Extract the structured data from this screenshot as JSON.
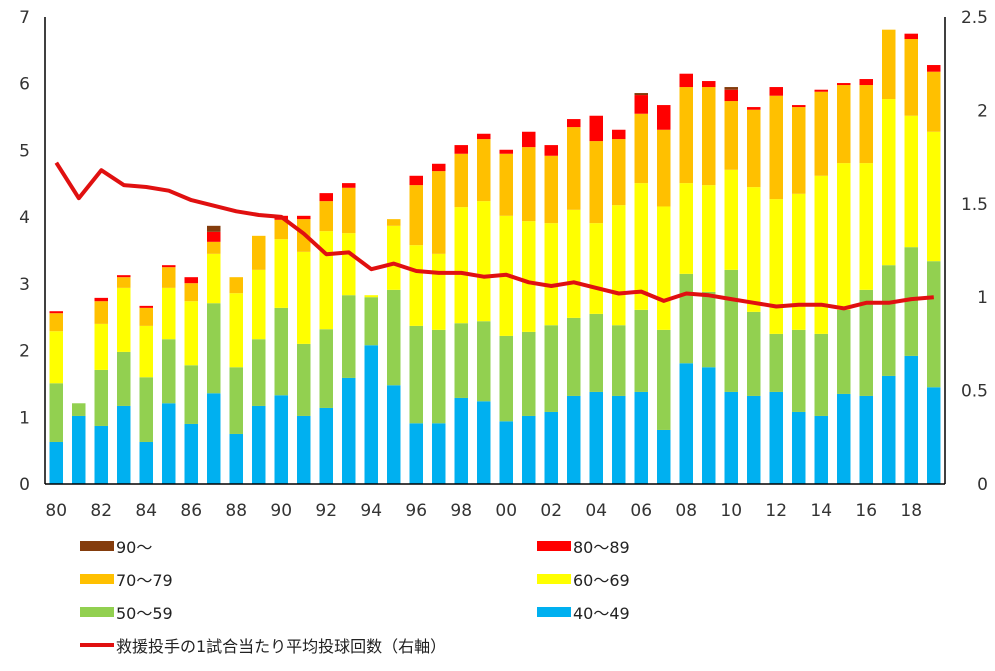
{
  "chart_data": {
    "type": "bar",
    "stacked": true,
    "categories": [
      "1980",
      "1981",
      "1982",
      "1983",
      "1984",
      "1985",
      "1986",
      "1987",
      "1988",
      "1989",
      "1990",
      "1991",
      "1992",
      "1993",
      "1994",
      "1995",
      "1996",
      "1997",
      "1998",
      "1999",
      "2000",
      "2001",
      "2002",
      "2003",
      "2004",
      "2005",
      "2006",
      "2007",
      "2008",
      "2009",
      "2010",
      "2011",
      "2012",
      "2013",
      "2014",
      "2015",
      "2016",
      "2017",
      "2018",
      "2019"
    ],
    "x_tick_labels": [
      "80",
      "82",
      "84",
      "86",
      "88",
      "90",
      "92",
      "94",
      "96",
      "98",
      "00",
      "02",
      "04",
      "06",
      "08",
      "10",
      "12",
      "14",
      "16",
      "18"
    ],
    "y_left": {
      "ylim": [
        0,
        7
      ],
      "ticks": [
        "0",
        "1",
        "2",
        "3",
        "4",
        "5",
        "6",
        "7"
      ]
    },
    "y_right": {
      "ylim": [
        0,
        2.5
      ],
      "ticks": [
        "0",
        "0.5",
        "1",
        "1.5",
        "2",
        "2.5"
      ]
    },
    "grid": false,
    "legend_placement": "bottom",
    "series": [
      {
        "name": "40～49",
        "color": "#00B0F0",
        "values": [
          0.63,
          1.02,
          0.87,
          1.17,
          0.63,
          1.21,
          0.9,
          1.36,
          0.75,
          1.17,
          1.33,
          1.02,
          1.14,
          1.59,
          2.08,
          1.48,
          0.91,
          0.91,
          1.29,
          1.24,
          0.94,
          1.02,
          1.08,
          1.32,
          1.38,
          1.32,
          1.38,
          0.81,
          1.81,
          1.75,
          1.38,
          1.32,
          1.38,
          1.08,
          1.02,
          1.35,
          1.32,
          1.62,
          1.92,
          1.45
        ]
      },
      {
        "name": "50～59",
        "color": "#92D050",
        "values": [
          0.88,
          0.19,
          0.84,
          0.81,
          0.97,
          0.96,
          0.88,
          1.35,
          1.0,
          1.0,
          1.31,
          1.08,
          1.18,
          1.24,
          0.72,
          1.43,
          1.46,
          1.4,
          1.12,
          1.2,
          1.28,
          1.26,
          1.3,
          1.17,
          1.17,
          1.06,
          1.23,
          1.5,
          1.34,
          1.13,
          1.83,
          1.26,
          0.87,
          1.23,
          1.23,
          1.26,
          1.59,
          1.66,
          1.63,
          1.89
        ]
      },
      {
        "name": "60～69",
        "color": "#FFFF00",
        "values": [
          0.78,
          0,
          0.69,
          0.96,
          0.77,
          0.77,
          0.96,
          0.74,
          1.11,
          1.04,
          1.03,
          1.38,
          1.47,
          0.93,
          0.03,
          0.96,
          1.21,
          1.14,
          1.74,
          1.8,
          1.8,
          1.66,
          1.53,
          1.62,
          1.36,
          1.8,
          1.9,
          1.85,
          1.36,
          1.6,
          1.5,
          1.87,
          2.02,
          2.04,
          2.37,
          2.2,
          1.9,
          2.49,
          1.97,
          1.94
        ]
      },
      {
        "name": "70～79",
        "color": "#FFC000",
        "values": [
          0.27,
          0,
          0.34,
          0.16,
          0.27,
          0.31,
          0.27,
          0.18,
          0.24,
          0.51,
          0.29,
          0.49,
          0.45,
          0.68,
          0,
          0.1,
          0.9,
          1.24,
          0.8,
          0.93,
          0.93,
          1.11,
          1.01,
          1.24,
          1.23,
          0.99,
          1.04,
          1.15,
          1.44,
          1.47,
          1.03,
          1.16,
          1.55,
          1.3,
          1.26,
          1.17,
          1.17,
          1.04,
          1.15,
          0.9
        ]
      },
      {
        "name": "80～89",
        "color": "#FF0000",
        "values": [
          0.03,
          0,
          0.05,
          0.03,
          0.03,
          0.03,
          0.09,
          0.15,
          0,
          0,
          0.06,
          0.05,
          0.12,
          0.07,
          0,
          0,
          0.14,
          0.11,
          0.13,
          0.08,
          0.06,
          0.23,
          0.16,
          0.12,
          0.38,
          0.14,
          0.28,
          0.37,
          0.2,
          0.09,
          0.17,
          0.04,
          0.13,
          0.03,
          0.03,
          0.03,
          0.09,
          0,
          0.08,
          0.1
        ]
      },
      {
        "name": "90～",
        "color": "#843C0C",
        "values": [
          0,
          0,
          0,
          0,
          0,
          0,
          0,
          0.09,
          0,
          0,
          0,
          0,
          0,
          0,
          0,
          0,
          0,
          0,
          0,
          0,
          0,
          0,
          0,
          0,
          0,
          0,
          0.03,
          0,
          0,
          0,
          0.04,
          0,
          0,
          0,
          0,
          0,
          0,
          0,
          0,
          0
        ]
      }
    ],
    "line_series": {
      "name": "救援投手の1試合当たり平均投球回数（右軸）",
      "axis": "right",
      "color": "#E01010",
      "values": [
        1.72,
        1.53,
        1.68,
        1.6,
        1.59,
        1.57,
        1.52,
        1.49,
        1.46,
        1.44,
        1.43,
        1.34,
        1.23,
        1.24,
        1.15,
        1.18,
        1.14,
        1.13,
        1.13,
        1.11,
        1.12,
        1.08,
        1.06,
        1.08,
        1.05,
        1.02,
        1.03,
        0.98,
        1.02,
        1.01,
        0.99,
        0.97,
        0.95,
        0.96,
        0.96,
        0.94,
        0.97,
        0.97,
        0.99,
        1.0
      ]
    },
    "legend": [
      {
        "label": "90～",
        "kind": "bar",
        "color": "#843C0C"
      },
      {
        "label": "80～89",
        "kind": "bar",
        "color": "#FF0000"
      },
      {
        "label": "70～79",
        "kind": "bar",
        "color": "#FFC000"
      },
      {
        "label": "60～69",
        "kind": "bar",
        "color": "#FFFF00"
      },
      {
        "label": "50～59",
        "kind": "bar",
        "color": "#92D050"
      },
      {
        "label": "40～49",
        "kind": "bar",
        "color": "#00B0F0"
      },
      {
        "label": "救援投手の1試合当たり平均投球回数（右軸）",
        "kind": "line",
        "color": "#E01010"
      }
    ]
  }
}
